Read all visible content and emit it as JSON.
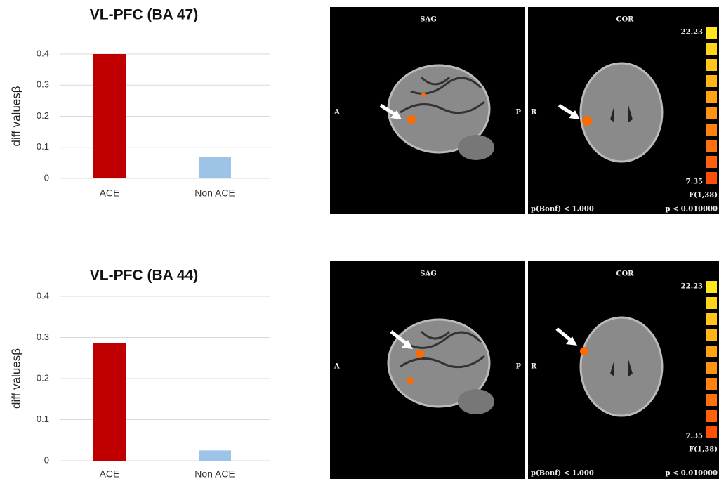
{
  "chart_data": [
    {
      "type": "bar",
      "title": "VL-PFC (BA 47)",
      "y_label": "diff valuesβ",
      "categories": [
        "ACE",
        "Non ACE"
      ],
      "values": [
        0.4,
        0.068
      ],
      "colors": [
        "#c00000",
        "#9dc3e6"
      ],
      "ylim": [
        0,
        0.4
      ],
      "yticks": [
        0,
        0.1,
        0.2,
        0.3,
        0.4
      ],
      "grid": true
    },
    {
      "type": "bar",
      "title": "VL-PFC (BA 44)",
      "y_label": "diff valuesβ",
      "categories": [
        "ACE",
        "Non ACE"
      ],
      "values": [
        0.287,
        0.025
      ],
      "colors": [
        "#c00000",
        "#9dc3e6"
      ],
      "ylim": [
        0,
        0.4
      ],
      "yticks": [
        0,
        0.1,
        0.2,
        0.3,
        0.4
      ],
      "grid": true
    }
  ],
  "images": [
    {
      "sag": "SAG",
      "cor": "COR",
      "anterior": "A",
      "posterior": "P",
      "right": "R",
      "scale_max": "22.23",
      "scale_min": "7.35",
      "stat": "F(1,38)",
      "p_bonf": "p(Bonf) < 1.000",
      "p": "p < 0.010000"
    },
    {
      "sag": "SAG",
      "cor": "COR",
      "anterior": "A",
      "posterior": "P",
      "right": "R",
      "scale_max": "22.23",
      "scale_min": "7.35",
      "stat": "F(1,38)",
      "p_bonf": "p(Bonf) < 1.000",
      "p": "p < 0.010000"
    }
  ]
}
